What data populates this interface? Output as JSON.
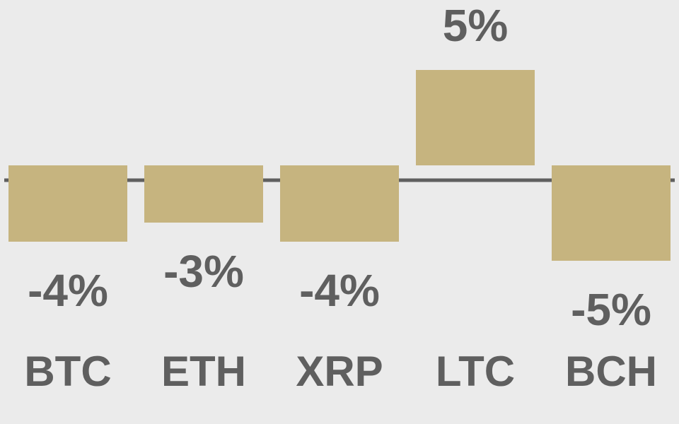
{
  "chart_data": {
    "type": "bar",
    "categories": [
      "BTC",
      "ETH",
      "XRP",
      "LTC",
      "BCH"
    ],
    "values": [
      -4,
      -3,
      -4,
      5,
      -5
    ],
    "value_labels": [
      "-4%",
      "-3%",
      "-4%",
      "5%",
      "-5%"
    ],
    "color": "#c6b47f"
  }
}
